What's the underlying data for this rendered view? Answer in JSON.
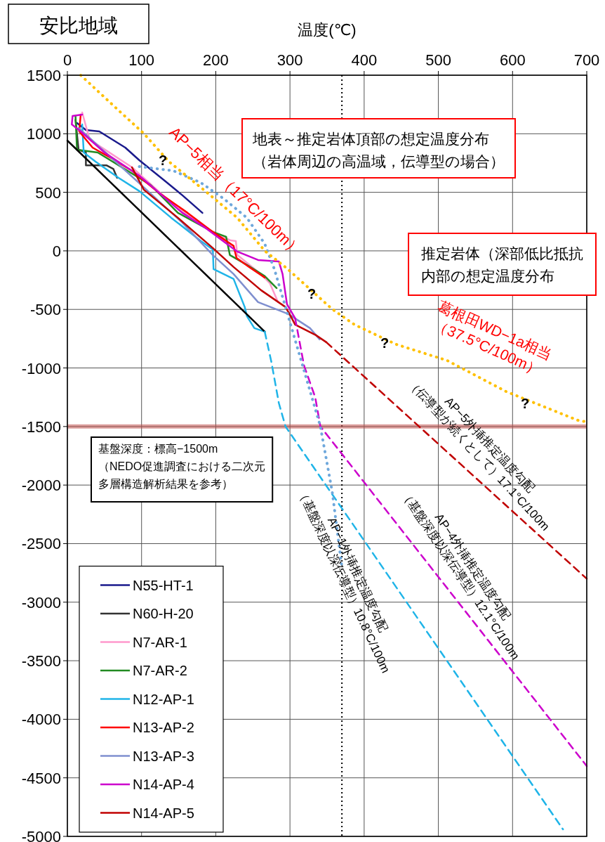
{
  "chart_data": {
    "type": "line",
    "title": "安比地域",
    "xlabel": "温度(℃)",
    "xlim": [
      0,
      700
    ],
    "xticks": [
      0,
      100,
      200,
      300,
      400,
      500,
      600,
      700
    ],
    "ylim": [
      -5000,
      1500
    ],
    "yticks": [
      1500,
      1000,
      500,
      0,
      -500,
      -1000,
      -1500,
      -2000,
      -2500,
      -3000,
      -3500,
      -4000,
      -4500,
      -5000
    ],
    "grid": true,
    "legend": "bottom left",
    "line_style": "solid",
    "series": [
      {
        "name": "N55-HT-1",
        "color": "#1a1a8c",
        "x": [
          13,
          25,
          43,
          78,
          97,
          131,
          155,
          182
        ],
        "values": [
          1092,
          1032,
          1020,
          882,
          774,
          600,
          474,
          324
        ]
      },
      {
        "name": "N60-H-20",
        "color": "#333333",
        "x": [
          11,
          15,
          25,
          25,
          53,
          62,
          67
        ],
        "values": [
          1120,
          864,
          840,
          730,
          730,
          700,
          624
        ]
      },
      {
        "name": "N7-AR-1",
        "color": "#ff99cc",
        "x": [
          20,
          30,
          87,
          149,
          196,
          220,
          227,
          229,
          261,
          273,
          284
        ],
        "values": [
          1182,
          950,
          714,
          360,
          162,
          89,
          84,
          -35,
          -200,
          -278,
          -438
        ]
      },
      {
        "name": "N7-AR-2",
        "color": "#228b22",
        "x": [
          11,
          13,
          41,
          112,
          149,
          196,
          214,
          219,
          242,
          266,
          282
        ],
        "values": [
          1152,
          864,
          840,
          564,
          324,
          162,
          120,
          -35,
          -120,
          -216,
          -318
        ]
      },
      {
        "name": "N12-AP-1",
        "color": "#1fb4e8",
        "x": [
          20,
          22,
          38,
          69,
          97,
          140,
          180,
          196,
          197,
          224,
          239,
          242,
          252,
          266
        ],
        "values": [
          1080,
          840,
          762,
          624,
          510,
          282,
          84,
          12,
          -156,
          -240,
          -480,
          -558,
          -660,
          -690
        ]
      },
      {
        "name": "N13-AP-2",
        "color": "#ff0000",
        "x": [
          18,
          16,
          34,
          59,
          87,
          124,
          162,
          196,
          224,
          228,
          245,
          266
        ],
        "values": [
          1164,
          1020,
          882,
          792,
          684,
          492,
          324,
          162,
          42,
          -60,
          -138,
          -228
        ]
      },
      {
        "name": "N13-AP-3",
        "color": "#7f8fcf",
        "x": [
          15,
          100,
          155,
          196,
          224,
          257,
          298,
          327,
          340
        ],
        "values": [
          1050,
          560,
          240,
          -36,
          -198,
          -438,
          -540,
          -660,
          -756
        ]
      },
      {
        "name": "N14-AP-4",
        "color": "#cc00cc",
        "x": [
          20,
          7,
          6,
          18,
          50,
          97,
          155,
          187,
          229,
          257,
          285,
          290,
          296,
          307
        ],
        "values": [
          1164,
          1152,
          1080,
          1020,
          840,
          642,
          324,
          192,
          -6,
          -78,
          -90,
          -198,
          -456,
          -576
        ]
      },
      {
        "name": "N14-AP-5",
        "color": "#c00000",
        "x": [
          87,
          103,
          149,
          196,
          224,
          261,
          294,
          301,
          307,
          335,
          349
        ],
        "values": [
          714,
          522,
          282,
          24,
          -138,
          -336,
          -480,
          -558,
          -630,
          -720,
          -780
        ]
      },
      {
        "color": "#000000",
        "x": [
          0,
          266
        ],
        "values": [
          942,
          -690
        ]
      },
      {
        "color": "#1fb4e8",
        "line_style": "dashed",
        "x": [
          266,
          275,
          285,
          294,
          668
        ],
        "values": [
          -690,
          -950,
          -1300,
          -1500,
          -4940
        ]
      },
      {
        "color": "#cc00cc",
        "line_style": "dashed",
        "x": [
          307,
          319,
          334,
          341,
          700
        ],
        "values": [
          -576,
          -980,
          -1250,
          -1500,
          -4400
        ]
      },
      {
        "color": "#c00000",
        "line_style": "dashed",
        "x": [
          349,
          700
        ],
        "values": [
          -780,
          -2800
        ]
      },
      {
        "color": "#6fa8dc",
        "line_style": "dotted",
        "x": [
          97,
          143,
          180,
          211,
          242,
          266,
          279,
          294,
          341,
          357,
          370
        ],
        "values": [
          720,
          684,
          582,
          444,
          282,
          60,
          -156,
          -480,
          -1500,
          -2059,
          -2700
        ]
      },
      {
        "color": "#ffc000",
        "line_style": "dotted",
        "x": [
          18,
          69,
          103,
          137,
          187,
          229,
          266,
          296,
          357,
          387,
          443,
          512,
          591,
          688,
          700
        ],
        "values": [
          1500,
          1200,
          1002,
          762,
          504,
          282,
          0,
          -150,
          -498,
          -630,
          -798,
          -937,
          -1200,
          -1447,
          -1460
        ]
      }
    ],
    "ref_lines": [
      {
        "axis": "x",
        "value": 370,
        "color": "#000000",
        "line_style": "dotted"
      },
      {
        "axis": "y",
        "value": -1500,
        "color": "#c0504d",
        "line_style": "solid"
      }
    ],
    "annotations": [
      "AP−5相当（17°C/100m）",
      "葛根田WD−1a相当\n（37.5°C/100m）",
      "地表～推定岩体頂部の想定温度分布（岩体周辺の高温域，伝導型の場合）",
      "推定岩体（深部低比抵抗内部の想定温度分布",
      "基盤深度：標高−1500m（NEDO促進調査における二次元多層構造解析結果を参考）",
      "AP−5外挿推定温度勾配\n（伝導型が続くとして）17.1°C/100m",
      "AP−4外挿推定温度勾配\n（基盤深度以深伝導型）12.1°C/100m",
      "AP−1外挿推定温度勾配\n（基盤深度以深伝導型）10.8°C/100m",
      "?",
      "?",
      "?",
      "?"
    ]
  }
}
